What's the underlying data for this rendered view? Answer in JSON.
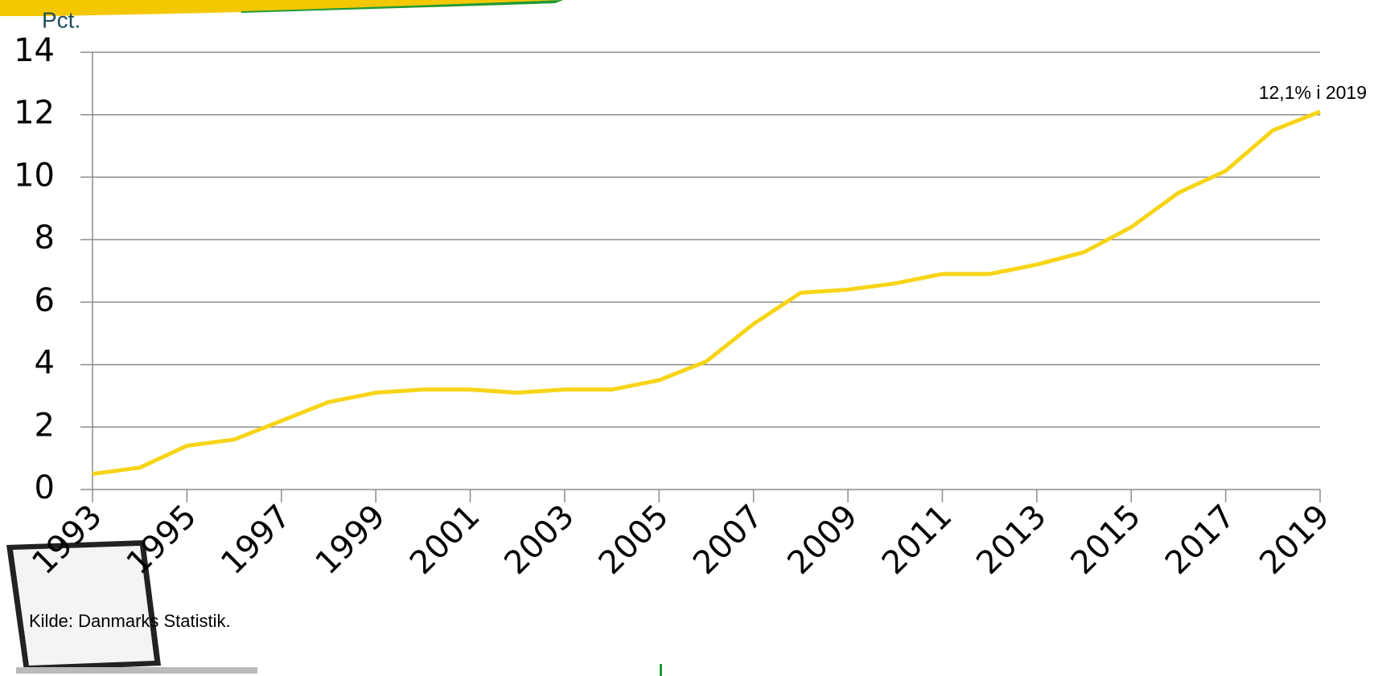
{
  "chart_data": {
    "type": "line",
    "y_label": "Pct.",
    "x": [
      1993,
      1994,
      1995,
      1996,
      1997,
      1998,
      1999,
      2000,
      2001,
      2002,
      2003,
      2004,
      2005,
      2006,
      2007,
      2008,
      2009,
      2010,
      2011,
      2012,
      2013,
      2014,
      2015,
      2016,
      2017,
      2018,
      2019
    ],
    "series": [
      {
        "color": "#f7d417",
        "values": [
          0.5,
          0.7,
          1.4,
          1.6,
          2.2,
          2.8,
          3.1,
          3.2,
          3.2,
          3.1,
          3.2,
          3.2,
          3.5,
          4.1,
          5.3,
          6.3,
          6.4,
          6.6,
          6.9,
          6.9,
          7.2,
          7.6,
          8.4,
          9.5,
          10.2,
          11.5,
          12.1
        ]
      }
    ],
    "xlim": [
      1993,
      2019
    ],
    "xticks": [
      1993,
      1995,
      1997,
      1999,
      2001,
      2003,
      2005,
      2007,
      2009,
      2011,
      2013,
      2015,
      2017,
      2019
    ],
    "ylim": [
      0,
      14
    ],
    "yticks": [
      0,
      2,
      4,
      6,
      8,
      10,
      12,
      14
    ],
    "grid": true,
    "annotation": "12,1% i 2019",
    "source": "Kilde: Danmarks Statistik."
  }
}
